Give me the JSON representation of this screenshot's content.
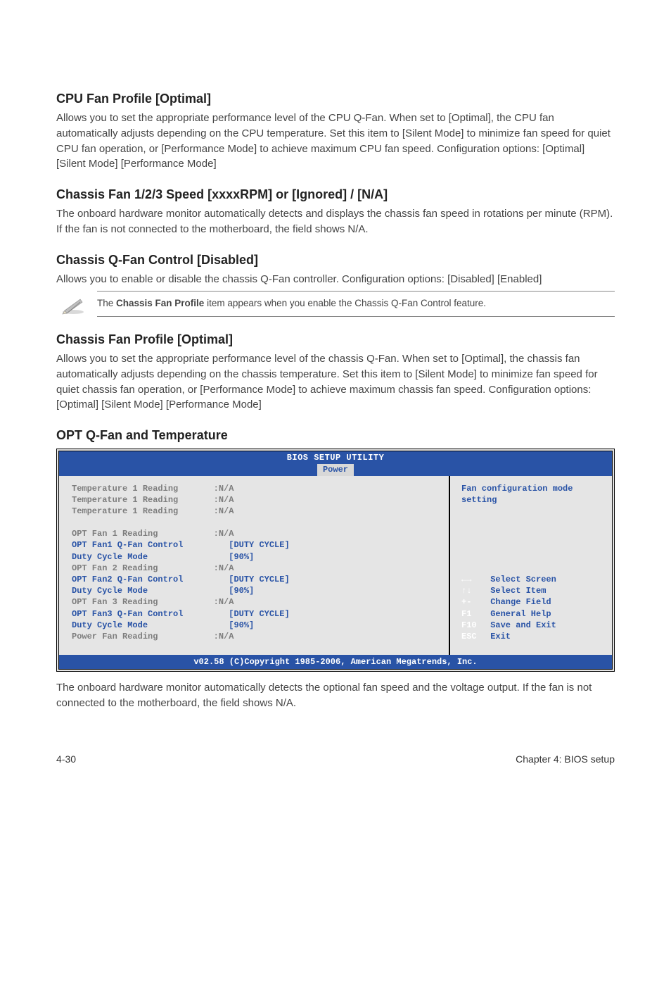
{
  "section1": {
    "title": "CPU Fan Profile [Optimal]",
    "body": "Allows you to set the appropriate performance level of the CPU Q-Fan. When set to [Optimal], the CPU fan automatically adjusts depending on the CPU temperature. Set this item to [Silent Mode] to minimize fan speed for quiet CPU fan operation, or [Performance Mode] to achieve maximum CPU fan speed. Configuration options: [Optimal] [Silent Mode] [Performance Mode]"
  },
  "section2": {
    "title": "Chassis Fan 1/2/3 Speed [xxxxRPM] or [Ignored] / [N/A]",
    "body": "The onboard hardware monitor automatically detects and displays the chassis fan speed in rotations per minute (RPM). If the fan is not connected to the motherboard, the field shows N/A."
  },
  "section3": {
    "title": "Chassis Q-Fan Control [Disabled]",
    "body": "Allows you to enable or disable the chassis Q-Fan controller. Configuration options: [Disabled] [Enabled]"
  },
  "note": {
    "prefix": "The ",
    "bold": "Chassis Fan Profile",
    "suffix": " item appears when you enable the Chassis Q-Fan Control feature."
  },
  "section4": {
    "title": "Chassis Fan Profile [Optimal]",
    "body": "Allows you to set the appropriate performance level of the chassis Q-Fan. When set to [Optimal], the chassis fan automatically adjusts depending on the chassis temperature. Set this item to [Silent Mode] to minimize fan speed for quiet chassis fan operation, or [Performance Mode] to achieve maximum chassis fan speed. Configuration options: [Optimal] [Silent Mode] [Performance Mode]"
  },
  "section5": {
    "title": "OPT Q-Fan and Temperature"
  },
  "bios": {
    "header_title": "BIOS SETUP UTILITY",
    "header_tab": "Power",
    "left_rows": [
      {
        "label": "Temperature 1 Reading",
        "value": ":N/A",
        "cls": "dim"
      },
      {
        "label": "Temperature 1 Reading",
        "value": ":N/A",
        "cls": "dim"
      },
      {
        "label": "Temperature 1 Reading",
        "value": ":N/A",
        "cls": "dim"
      },
      {
        "label": "",
        "value": "",
        "cls": "dim"
      },
      {
        "label": "OPT Fan 1 Reading",
        "value": ":N/A",
        "cls": "dim"
      },
      {
        "label": "OPT Fan1 Q-Fan Control",
        "value": "   [DUTY CYCLE]",
        "cls": "blue"
      },
      {
        "label": "Duty Cycle Mode",
        "value": "   [90%]",
        "cls": "blue"
      },
      {
        "label": "OPT Fan 2 Reading",
        "value": ":N/A",
        "cls": "dim"
      },
      {
        "label": "OPT Fan2 Q-Fan Control",
        "value": "   [DUTY CYCLE]",
        "cls": "blue"
      },
      {
        "label": "Duty Cycle Mode",
        "value": "   [90%]",
        "cls": "blue"
      },
      {
        "label": "OPT Fan 3 Reading",
        "value": ":N/A",
        "cls": "dim"
      },
      {
        "label": "OPT Fan3 Q-Fan Control",
        "value": "   [DUTY CYCLE]",
        "cls": "blue"
      },
      {
        "label": "Duty Cycle Mode",
        "value": "   [90%]",
        "cls": "blue"
      },
      {
        "label": "Power Fan Reading",
        "value": ":N/A",
        "cls": "dim"
      }
    ],
    "right_help": "Fan configuration mode setting",
    "right_keys": [
      {
        "k": "←→",
        "t": "Select Screen"
      },
      {
        "k": "↑↓",
        "t": "Select Item"
      },
      {
        "k": "+-",
        "t": "Change Field"
      },
      {
        "k": "F1",
        "t": "General Help"
      },
      {
        "k": "F10",
        "t": "Save and Exit"
      },
      {
        "k": "ESC",
        "t": "Exit"
      }
    ],
    "footer": "v02.58 (C)Copyright 1985-2006, American Megatrends, Inc."
  },
  "after_bios": "The onboard hardware monitor automatically detects the optional fan speed and the voltage output. If the fan is not connected to the motherboard, the field shows N/A.",
  "page_footer": {
    "left": "4-30",
    "right": "Chapter 4: BIOS setup"
  }
}
